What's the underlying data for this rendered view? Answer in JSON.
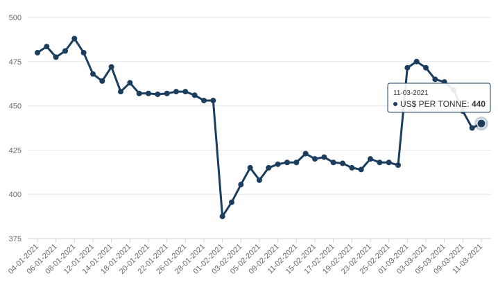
{
  "chart_data": {
    "type": "line",
    "categories": [
      "04-01-2021",
      null,
      "06-01-2021",
      null,
      "08-01-2021",
      null,
      "12-01-2021",
      null,
      "14-01-2021",
      null,
      "18-01-2021",
      null,
      "20-01-2021",
      null,
      "22-01-2021",
      null,
      "26-01-2021",
      null,
      "28-01-2021",
      null,
      "01-02-2021",
      null,
      "03-02-2021",
      null,
      "05-02-2021",
      null,
      "09-02-2021",
      null,
      "11-02-2021",
      null,
      "15-02-2021",
      null,
      "17-02-2021",
      null,
      "19-02-2021",
      null,
      "23-02-2021",
      null,
      "25-02-2021",
      null,
      "01-03-2021",
      null,
      "03-03-2021",
      null,
      "05-03-2021",
      null,
      "09-03-2021",
      null,
      "11-03-2021"
    ],
    "series": [
      {
        "name": "US$ PER TONNE",
        "color": "#1b3d5e",
        "values": [
          480,
          483.5,
          477.5,
          481,
          488,
          480,
          468,
          464,
          472,
          458,
          463,
          457,
          457,
          456.5,
          457,
          458,
          458,
          456,
          453,
          453,
          387.5,
          395.5,
          405.5,
          415,
          408,
          415,
          417,
          418,
          418,
          423,
          420,
          421,
          418,
          417.5,
          415,
          414,
          420,
          418,
          418,
          416.5,
          471.5,
          475,
          471.5,
          465,
          463.5,
          459,
          447,
          437.5,
          440
        ]
      }
    ],
    "ylim": [
      375,
      500
    ],
    "yticks": [
      375,
      400,
      425,
      450,
      475,
      500
    ],
    "grid": true,
    "tooltip": {
      "index": 48
    }
  }
}
